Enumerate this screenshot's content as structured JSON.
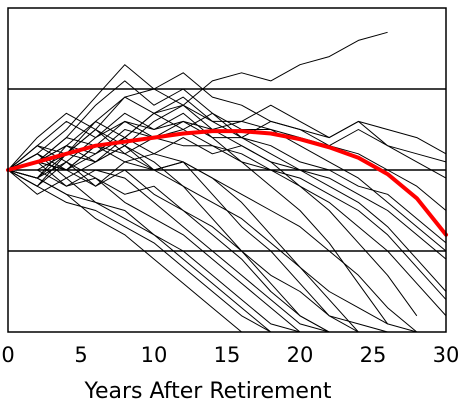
{
  "chart_data": {
    "type": "line",
    "title": "",
    "xlabel": "Years After Retirement",
    "ylabel": "",
    "xlim": [
      0,
      30
    ],
    "ylim": [
      0,
      4
    ],
    "x_ticks": [
      0,
      5,
      10,
      15,
      20,
      25,
      30
    ],
    "y_ticks_visible": false,
    "horizontal_gridlines": [
      1,
      2,
      3
    ],
    "grid": "horizontal",
    "legend": "none",
    "colors": {
      "paths": "#000000",
      "median": "#ff0000",
      "frame": "#000000",
      "gridline": "#000000"
    },
    "series": [
      {
        "x": [
          0,
          2,
          4,
          6,
          8,
          10,
          12,
          14,
          16,
          18,
          20,
          22,
          24,
          26
        ],
        "y": [
          2.0,
          2.1,
          2.3,
          2.6,
          2.9,
          3.0,
          2.8,
          3.1,
          3.2,
          3.1,
          3.3,
          3.4,
          3.6,
          3.7
        ]
      },
      {
        "x": [
          0,
          2,
          4,
          6,
          8,
          10,
          12,
          14,
          16,
          18,
          20,
          22,
          24,
          26,
          28,
          30
        ],
        "y": [
          2.0,
          2.2,
          2.5,
          2.9,
          3.3,
          3.0,
          3.2,
          2.9,
          2.8,
          2.6,
          2.5,
          2.4,
          2.6,
          2.5,
          2.4,
          2.2
        ]
      },
      {
        "x": [
          0,
          2,
          4,
          6,
          8,
          10,
          12,
          14,
          16,
          18,
          20,
          22,
          24,
          26,
          28,
          30
        ],
        "y": [
          2.0,
          2.3,
          2.6,
          2.4,
          2.7,
          2.5,
          2.6,
          2.4,
          2.4,
          2.6,
          2.5,
          2.3,
          2.2,
          2.0,
          1.8,
          1.5
        ]
      },
      {
        "x": [
          0,
          2,
          4,
          6,
          8,
          10,
          12,
          14,
          16,
          18,
          20,
          22,
          24,
          26,
          28,
          30
        ],
        "y": [
          2.0,
          2.1,
          2.4,
          2.8,
          3.1,
          2.8,
          3.0,
          2.7,
          2.5,
          2.5,
          2.3,
          2.1,
          1.9,
          1.6,
          1.3,
          1.0
        ]
      },
      {
        "x": [
          0,
          2,
          4,
          6,
          8,
          10,
          12,
          14,
          16,
          18,
          20,
          22,
          24,
          26,
          28
        ],
        "y": [
          2.0,
          1.9,
          2.2,
          2.5,
          2.3,
          2.6,
          2.8,
          2.5,
          2.3,
          2.1,
          1.8,
          1.5,
          1.1,
          0.7,
          0.2
        ]
      },
      {
        "x": [
          0,
          2,
          4,
          6,
          8,
          10,
          12,
          14,
          16,
          18,
          20,
          22,
          24,
          26
        ],
        "y": [
          2.0,
          2.3,
          2.1,
          2.4,
          2.6,
          2.5,
          2.7,
          2.4,
          2.1,
          1.8,
          1.5,
          1.1,
          0.6,
          0.1
        ]
      },
      {
        "x": [
          0,
          2,
          4,
          6,
          8,
          10,
          12,
          14,
          16,
          18,
          20,
          22,
          24
        ],
        "y": [
          2.0,
          2.1,
          2.0,
          2.2,
          2.4,
          2.2,
          2.1,
          1.9,
          1.6,
          1.2,
          0.8,
          0.4,
          0.0
        ]
      },
      {
        "x": [
          0,
          2,
          4,
          6,
          8,
          10,
          12,
          14,
          16,
          18,
          20,
          22,
          24
        ],
        "y": [
          2.0,
          1.8,
          2.2,
          2.5,
          2.2,
          2.0,
          2.1,
          1.7,
          1.3,
          1.0,
          0.6,
          0.2,
          0.0
        ]
      },
      {
        "x": [
          0,
          2,
          4,
          6,
          8,
          10,
          12,
          14,
          16,
          18,
          20,
          22
        ],
        "y": [
          2.0,
          2.2,
          1.9,
          2.1,
          2.3,
          2.1,
          1.8,
          1.4,
          1.0,
          0.6,
          0.2,
          0.0
        ]
      },
      {
        "x": [
          0,
          2,
          4,
          6,
          8,
          10,
          12,
          14,
          16,
          18,
          20,
          22
        ],
        "y": [
          2.0,
          1.9,
          2.1,
          1.8,
          2.0,
          1.7,
          1.5,
          1.2,
          0.9,
          0.5,
          0.2,
          0.0
        ]
      },
      {
        "x": [
          0,
          2,
          4,
          6,
          8,
          10,
          12,
          14,
          16,
          18,
          20
        ],
        "y": [
          2.0,
          2.1,
          1.8,
          1.9,
          1.6,
          1.4,
          1.2,
          0.9,
          0.6,
          0.3,
          0.0
        ]
      },
      {
        "x": [
          0,
          2,
          4,
          6,
          8,
          10,
          12,
          14,
          16,
          18,
          20
        ],
        "y": [
          2.0,
          1.7,
          1.9,
          1.6,
          1.5,
          1.2,
          1.0,
          0.7,
          0.4,
          0.1,
          0.0
        ]
      },
      {
        "x": [
          0,
          2,
          4,
          6,
          8,
          10,
          12,
          14,
          16,
          18
        ],
        "y": [
          2.0,
          1.8,
          1.6,
          1.5,
          1.3,
          1.1,
          0.8,
          0.5,
          0.2,
          0.0
        ]
      },
      {
        "x": [
          0,
          2,
          4,
          6,
          8,
          10,
          12,
          14,
          16
        ],
        "y": [
          2.0,
          1.9,
          1.7,
          1.4,
          1.2,
          0.9,
          0.6,
          0.3,
          0.0
        ]
      },
      {
        "x": [
          0,
          2,
          4,
          6,
          8,
          10,
          12,
          14,
          16,
          18,
          20,
          22,
          24,
          26,
          28,
          30
        ],
        "y": [
          2.0,
          2.1,
          2.3,
          2.2,
          2.5,
          2.4,
          2.6,
          2.5,
          2.6,
          2.5,
          2.4,
          2.3,
          2.5,
          2.3,
          2.2,
          2.1
        ]
      },
      {
        "x": [
          0,
          2,
          4,
          6,
          8,
          10,
          12,
          14,
          16,
          18,
          20,
          22,
          24,
          26,
          28,
          30
        ],
        "y": [
          2.0,
          2.3,
          2.2,
          2.6,
          2.4,
          2.7,
          2.5,
          2.3,
          2.2,
          2.0,
          1.9,
          1.7,
          1.5,
          1.2,
          0.8,
          0.4
        ]
      },
      {
        "x": [
          0,
          2,
          4,
          6,
          8,
          10,
          12,
          14,
          16,
          18,
          20,
          22,
          24,
          26,
          28,
          30
        ],
        "y": [
          2.0,
          1.9,
          2.3,
          2.1,
          2.4,
          2.7,
          2.9,
          2.6,
          2.4,
          2.2,
          2.0,
          1.8,
          1.6,
          1.3,
          0.9,
          0.5
        ]
      },
      {
        "x": [
          0,
          2,
          4,
          6,
          8,
          10,
          12,
          14,
          16,
          18,
          20,
          22,
          24,
          26,
          28,
          30
        ],
        "y": [
          2.0,
          2.1,
          2.0,
          2.3,
          2.2,
          2.4,
          2.3,
          2.3,
          2.1,
          2.0,
          1.8,
          1.6,
          1.3,
          1.0,
          0.6,
          0.2
        ]
      },
      {
        "x": [
          0,
          2,
          4,
          6,
          8,
          10,
          12,
          14,
          16,
          18,
          20,
          22,
          24,
          26,
          28
        ],
        "y": [
          2.0,
          2.2,
          2.0,
          1.8,
          2.1,
          2.0,
          1.8,
          1.6,
          1.4,
          1.1,
          0.8,
          0.5,
          0.3,
          0.1,
          0.0
        ]
      },
      {
        "x": [
          0,
          2,
          4,
          6,
          8,
          10,
          12,
          14,
          16,
          18,
          20,
          22,
          24,
          26
        ],
        "y": [
          2.0,
          1.8,
          2.1,
          1.9,
          1.7,
          1.8,
          1.5,
          1.3,
          1.0,
          0.7,
          0.5,
          0.2,
          0.1,
          0.0
        ]
      },
      {
        "x": [
          0,
          2,
          4,
          6,
          8,
          10,
          12,
          14,
          16,
          18,
          20,
          22
        ],
        "y": [
          2.0,
          2.0,
          1.8,
          2.0,
          1.9,
          1.6,
          1.3,
          1.0,
          0.7,
          0.4,
          0.1,
          0.0
        ]
      },
      {
        "x": [
          0,
          2,
          4,
          6,
          8,
          10,
          12,
          14,
          16,
          18
        ],
        "y": [
          2.0,
          1.9,
          1.7,
          1.6,
          1.4,
          1.2,
          0.9,
          0.6,
          0.3,
          0.0
        ]
      },
      {
        "x": [
          0,
          2,
          4,
          6,
          8,
          10,
          12,
          14,
          16,
          18,
          20,
          22,
          24,
          26,
          28,
          30
        ],
        "y": [
          2.0,
          2.4,
          2.7,
          2.5,
          2.9,
          2.7,
          2.8,
          2.6,
          2.6,
          2.8,
          2.6,
          2.4,
          2.6,
          2.3,
          2.1,
          1.9
        ]
      },
      {
        "x": [
          0,
          2,
          4,
          6,
          8,
          10,
          12,
          14,
          16,
          18,
          20,
          22,
          24,
          26,
          28,
          30
        ],
        "y": [
          2.0,
          2.2,
          2.0,
          2.3,
          2.1,
          2.2,
          2.4,
          2.2,
          2.3,
          2.1,
          2.0,
          1.9,
          1.7,
          1.5,
          1.2,
          0.9
        ]
      },
      {
        "x": [
          0,
          2,
          4,
          6,
          8,
          10,
          12,
          14,
          16,
          18,
          20,
          22,
          24,
          26,
          28,
          30
        ],
        "y": [
          2.0,
          2.1,
          2.4,
          2.3,
          2.6,
          2.4,
          2.5,
          2.7,
          2.4,
          2.3,
          2.1,
          2.0,
          1.8,
          1.7,
          1.4,
          1.1
        ]
      },
      {
        "x": [
          0,
          2,
          4,
          6,
          8,
          10,
          12,
          14,
          16,
          18,
          20,
          22,
          24,
          26,
          28
        ],
        "y": [
          2.0,
          2.0,
          2.2,
          2.1,
          2.3,
          2.0,
          2.1,
          1.9,
          1.7,
          1.5,
          1.3,
          1.0,
          0.7,
          0.3,
          0.0
        ]
      }
    ],
    "median_line": {
      "x": [
        0,
        2,
        4,
        6,
        8,
        10,
        12,
        14,
        16,
        18,
        20,
        22,
        24,
        26,
        28,
        30
      ],
      "y": [
        2.0,
        2.1,
        2.2,
        2.3,
        2.35,
        2.4,
        2.45,
        2.48,
        2.48,
        2.45,
        2.38,
        2.28,
        2.15,
        1.95,
        1.65,
        1.2
      ]
    }
  }
}
